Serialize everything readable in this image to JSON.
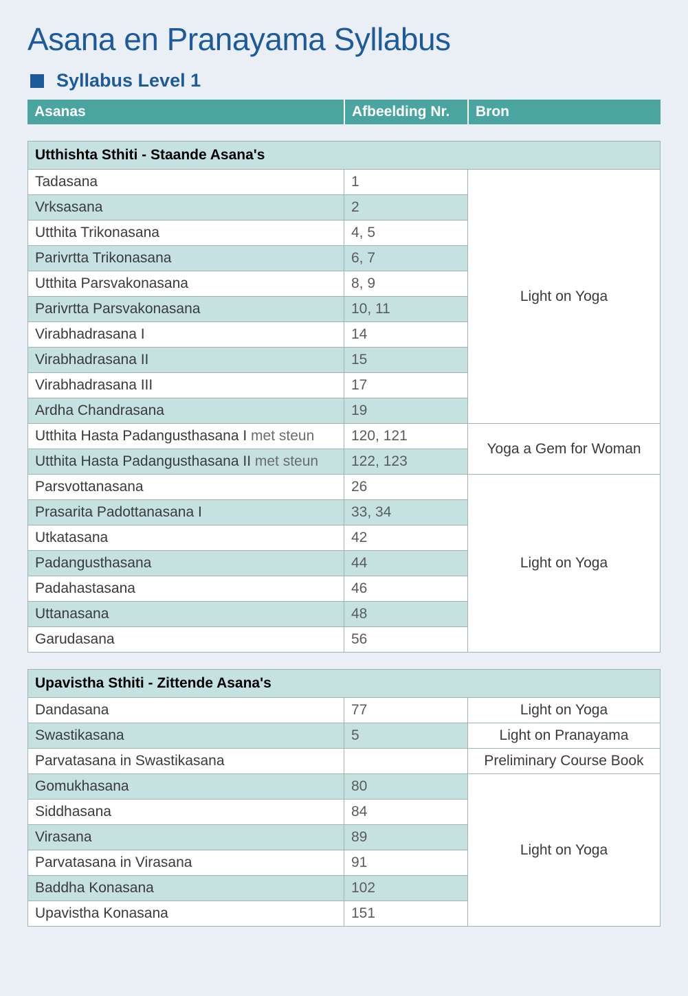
{
  "colors": {
    "background": "#eaeff6",
    "heading": "#1c5a9a",
    "header_bar": "#4aa5a0",
    "row_alt": "#c5e2e0",
    "border": "#9bb4b3",
    "text": "#333333"
  },
  "title": "Asana en Pranayama Syllabus",
  "subtitle": "Syllabus Level 1",
  "columns": {
    "asanas": "Asanas",
    "afbeelding": "Afbeelding Nr.",
    "bron": "Bron"
  },
  "tables": [
    {
      "section": "Utthishta Sthiti - Staande Asana's",
      "groups": [
        {
          "bron": "Light on Yoga",
          "rows": [
            {
              "name": "Tadasana",
              "nr": "1"
            },
            {
              "name": "Vrksasana",
              "nr": "2"
            },
            {
              "name": "Utthita Trikonasana",
              "nr": "4, 5"
            },
            {
              "name": "Parivrtta Trikonasana",
              "nr": "6, 7"
            },
            {
              "name": "Utthita Parsvakonasana",
              "nr": "8, 9"
            },
            {
              "name": "Parivrtta Parsvakonasana",
              "nr": "10, 11"
            },
            {
              "name": "Virabhadrasana I",
              "nr": "14"
            },
            {
              "name": "Virabhadrasana II",
              "nr": "15"
            },
            {
              "name": "Virabhadrasana III",
              "nr": "17"
            },
            {
              "name": "Ardha Chandrasana",
              "nr": "19"
            }
          ]
        },
        {
          "bron": "Yoga a Gem for Woman",
          "rows": [
            {
              "name": "Utthita Hasta Padangusthasana I",
              "note": "met steun",
              "nr": "120, 121"
            },
            {
              "name": "Utthita Hasta Padangusthasana II",
              "note": "met steun",
              "nr": "122, 123"
            }
          ]
        },
        {
          "bron": "Light on Yoga",
          "rows": [
            {
              "name": "Parsvottanasana",
              "nr": "26"
            },
            {
              "name": "Prasarita Padottanasana I",
              "nr": "33, 34"
            },
            {
              "name": "Utkatasana",
              "nr": "42"
            },
            {
              "name": "Padangusthasana",
              "nr": "44"
            },
            {
              "name": "Padahastasana",
              "nr": "46"
            },
            {
              "name": "Uttanasana",
              "nr": "48"
            },
            {
              "name": "Garudasana",
              "nr": "56"
            }
          ]
        }
      ]
    },
    {
      "section": "Upavistha Sthiti - Zittende Asana's",
      "groups": [
        {
          "bron": "Light on Yoga",
          "rows": [
            {
              "name": "Dandasana",
              "nr": "77"
            }
          ]
        },
        {
          "bron": "Light on Pranayama",
          "rows": [
            {
              "name": "Swastikasana",
              "nr": "5"
            }
          ]
        },
        {
          "bron": "Preliminary Course Book",
          "rows": [
            {
              "name": "Parvatasana in Swastikasana",
              "nr": ""
            }
          ]
        },
        {
          "bron": "Light on Yoga",
          "rows": [
            {
              "name": "Gomukhasana",
              "nr": "80"
            },
            {
              "name": "Siddhasana",
              "nr": "84"
            },
            {
              "name": "Virasana",
              "nr": "89"
            },
            {
              "name": "Parvatasana in Virasana",
              "nr": "91"
            },
            {
              "name": "Baddha Konasana",
              "nr": "102"
            },
            {
              "name": "Upavistha Konasana",
              "nr": "151"
            }
          ]
        }
      ]
    }
  ]
}
